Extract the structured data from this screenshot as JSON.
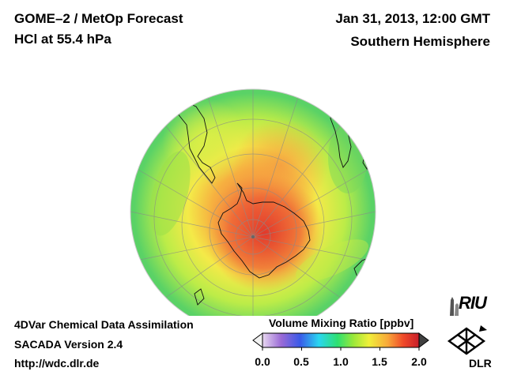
{
  "header": {
    "title_line1": "GOME–2 / MetOp Forecast",
    "title_line2": "HCl at 55.4 hPa",
    "date": "Jan 31, 2013, 12:00 GMT",
    "region": "Southern Hemisphere"
  },
  "footer": {
    "line1": "4DVar Chemical Data Assimilation",
    "line2": "SACADA Version 2.4",
    "line3": "http://wdc.dlr.de"
  },
  "colorbar": {
    "title": "Volume Mixing Ratio [ppbv]",
    "ticks": [
      "0.0",
      "0.5",
      "1.0",
      "1.5",
      "2.0"
    ],
    "range": [
      0.0,
      2.0
    ],
    "colors": [
      "#e8d8f0",
      "#9a6ad6",
      "#3a5ae8",
      "#2ad6f0",
      "#2ee070",
      "#9ae83a",
      "#f0f03a",
      "#f8a83a",
      "#f04a2a",
      "#c81e2a"
    ]
  },
  "logos": {
    "riu": "RIU",
    "dlr": "DLR"
  },
  "map": {
    "projection": "Orthographic polar, South Pole centered",
    "colors": {
      "outer": "#5ad266",
      "mid": "#c4ee48",
      "inner": "#f6e848",
      "core": "#f06a3c",
      "peak": "#e03a2c"
    }
  }
}
